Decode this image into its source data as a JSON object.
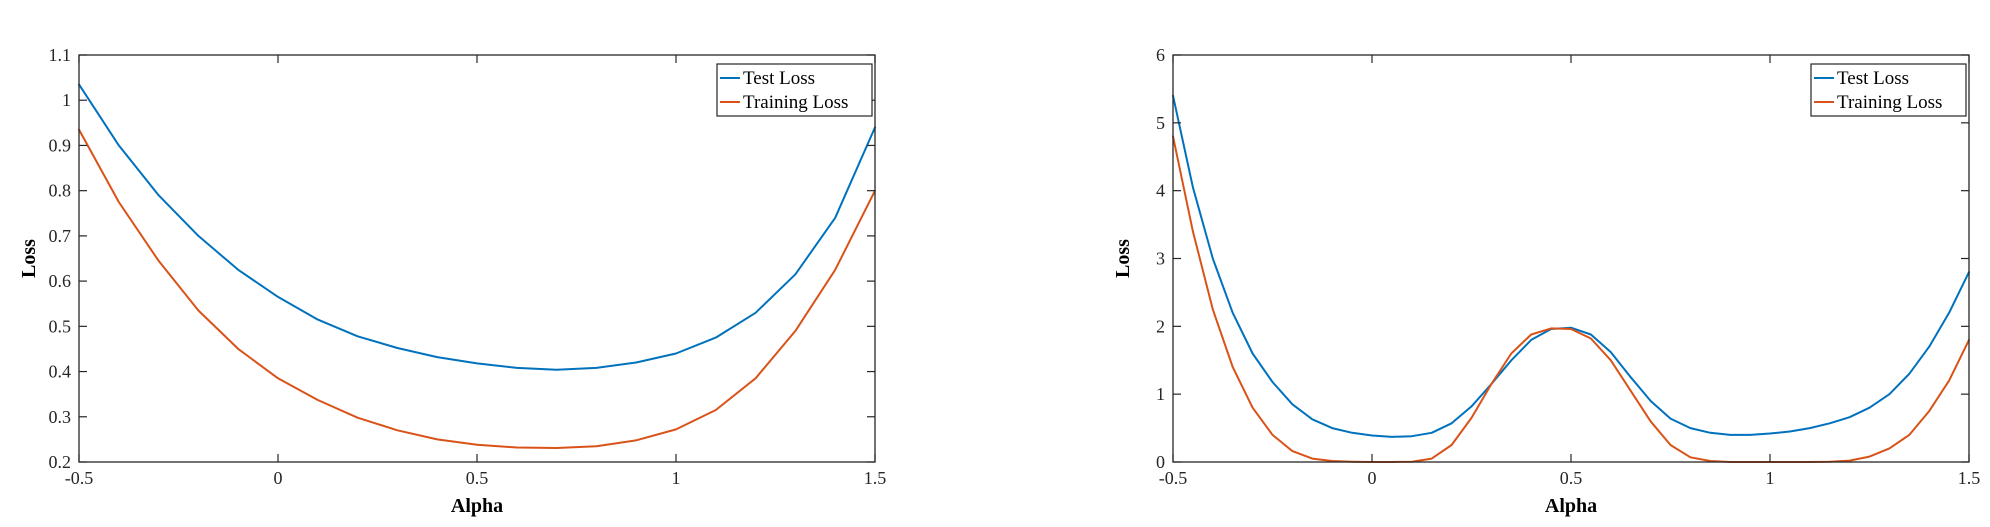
{
  "chart_data": [
    {
      "type": "line",
      "xlabel": "Alpha",
      "ylabel": "Loss",
      "xlim": [
        -0.5,
        1.5
      ],
      "ylim": [
        0.2,
        1.1
      ],
      "xticks": [
        -0.5,
        0,
        0.5,
        1,
        1.5
      ],
      "xtick_labels": [
        "-0.5",
        "0",
        "0.5",
        "1",
        "1.5"
      ],
      "yticks": [
        0.2,
        0.3,
        0.4,
        0.5,
        0.6,
        0.7,
        0.8,
        0.9,
        1.0,
        1.1
      ],
      "ytick_labels": [
        "0.2",
        "0.3",
        "0.4",
        "0.5",
        "0.6",
        "0.7",
        "0.8",
        "0.9",
        "1",
        "1.1"
      ],
      "grid": false,
      "legend_position": "top-right",
      "x": [
        -0.5,
        -0.4,
        -0.3,
        -0.2,
        -0.1,
        0.0,
        0.1,
        0.2,
        0.3,
        0.4,
        0.5,
        0.6,
        0.7,
        0.8,
        0.9,
        1.0,
        1.1,
        1.2,
        1.3,
        1.4,
        1.5
      ],
      "series": [
        {
          "name": "Test Loss",
          "color": "#0072BD",
          "values": [
            1.035,
            0.9,
            0.79,
            0.7,
            0.625,
            0.565,
            0.515,
            0.478,
            0.452,
            0.432,
            0.418,
            0.408,
            0.404,
            0.408,
            0.42,
            0.44,
            0.475,
            0.53,
            0.615,
            0.74,
            0.94
          ]
        },
        {
          "name": "Training Loss",
          "color": "#D95319",
          "values": [
            0.935,
            0.775,
            0.645,
            0.535,
            0.45,
            0.385,
            0.337,
            0.298,
            0.27,
            0.25,
            0.238,
            0.232,
            0.231,
            0.235,
            0.248,
            0.272,
            0.315,
            0.385,
            0.49,
            0.625,
            0.8
          ]
        }
      ]
    },
    {
      "type": "line",
      "xlabel": "Alpha",
      "ylabel": "Loss",
      "xlim": [
        -0.5,
        1.5
      ],
      "ylim": [
        0,
        6
      ],
      "xticks": [
        -0.5,
        0,
        0.5,
        1,
        1.5
      ],
      "xtick_labels": [
        "-0.5",
        "0",
        "0.5",
        "1",
        "1.5"
      ],
      "yticks": [
        0,
        1,
        2,
        3,
        4,
        5,
        6
      ],
      "ytick_labels": [
        "0",
        "1",
        "2",
        "3",
        "4",
        "5",
        "6"
      ],
      "grid": false,
      "legend_position": "top-right",
      "x": [
        -0.5,
        -0.45,
        -0.4,
        -0.35,
        -0.3,
        -0.25,
        -0.2,
        -0.15,
        -0.1,
        -0.05,
        0.0,
        0.05,
        0.1,
        0.15,
        0.2,
        0.25,
        0.3,
        0.35,
        0.4,
        0.45,
        0.5,
        0.55,
        0.6,
        0.65,
        0.7,
        0.75,
        0.8,
        0.85,
        0.9,
        0.95,
        1.0,
        1.05,
        1.1,
        1.15,
        1.2,
        1.25,
        1.3,
        1.35,
        1.4,
        1.45,
        1.5
      ],
      "series": [
        {
          "name": "Test Loss",
          "color": "#0072BD",
          "values": [
            5.4,
            4.05,
            3.0,
            2.2,
            1.6,
            1.18,
            0.85,
            0.63,
            0.5,
            0.43,
            0.39,
            0.37,
            0.38,
            0.43,
            0.57,
            0.82,
            1.15,
            1.5,
            1.8,
            1.96,
            1.98,
            1.88,
            1.62,
            1.25,
            0.9,
            0.64,
            0.5,
            0.43,
            0.4,
            0.4,
            0.42,
            0.45,
            0.5,
            0.57,
            0.66,
            0.8,
            1.0,
            1.3,
            1.7,
            2.2,
            2.8
          ]
        },
        {
          "name": "Training Loss",
          "color": "#D95319",
          "values": [
            4.8,
            3.4,
            2.25,
            1.4,
            0.8,
            0.4,
            0.16,
            0.05,
            0.015,
            0.005,
            0.0,
            0.0,
            0.005,
            0.05,
            0.25,
            0.65,
            1.15,
            1.6,
            1.88,
            1.97,
            1.96,
            1.82,
            1.5,
            1.05,
            0.6,
            0.25,
            0.07,
            0.015,
            0.0,
            0.0,
            0.0,
            0.0,
            0.0,
            0.005,
            0.02,
            0.08,
            0.2,
            0.4,
            0.75,
            1.2,
            1.8
          ]
        }
      ]
    }
  ]
}
